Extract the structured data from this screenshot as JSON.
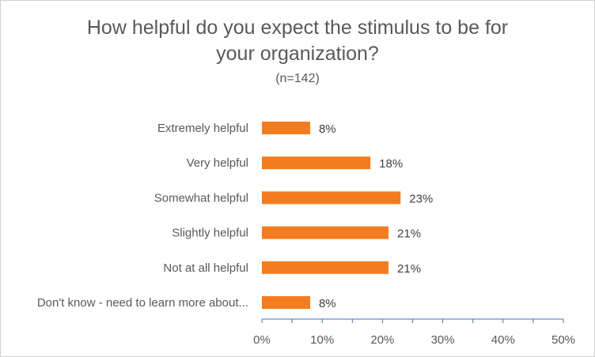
{
  "chart_data": {
    "type": "bar",
    "orientation": "horizontal",
    "title_lines": [
      "How helpful do you expect the stimulus to be for",
      "your organization?"
    ],
    "subtitle": "(n=142)",
    "categories": [
      "Extremely helpful",
      "Very helpful",
      "Somewhat helpful",
      "Slightly helpful",
      "Not at all helpful",
      "Don't know - need to learn more about..."
    ],
    "values": [
      8,
      18,
      23,
      21,
      21,
      8
    ],
    "data_labels": [
      "8%",
      "18%",
      "23%",
      "21%",
      "21%",
      "8%"
    ],
    "xlim": [
      0,
      50
    ],
    "x_ticks": [
      0,
      10,
      20,
      30,
      40,
      50
    ],
    "x_tick_labels": [
      "0%",
      "10%",
      "20%",
      "30%",
      "40%",
      "50%"
    ],
    "grid": false,
    "legend": "none",
    "bar_color": "#F47C20",
    "axis_color": "#4472C4"
  }
}
